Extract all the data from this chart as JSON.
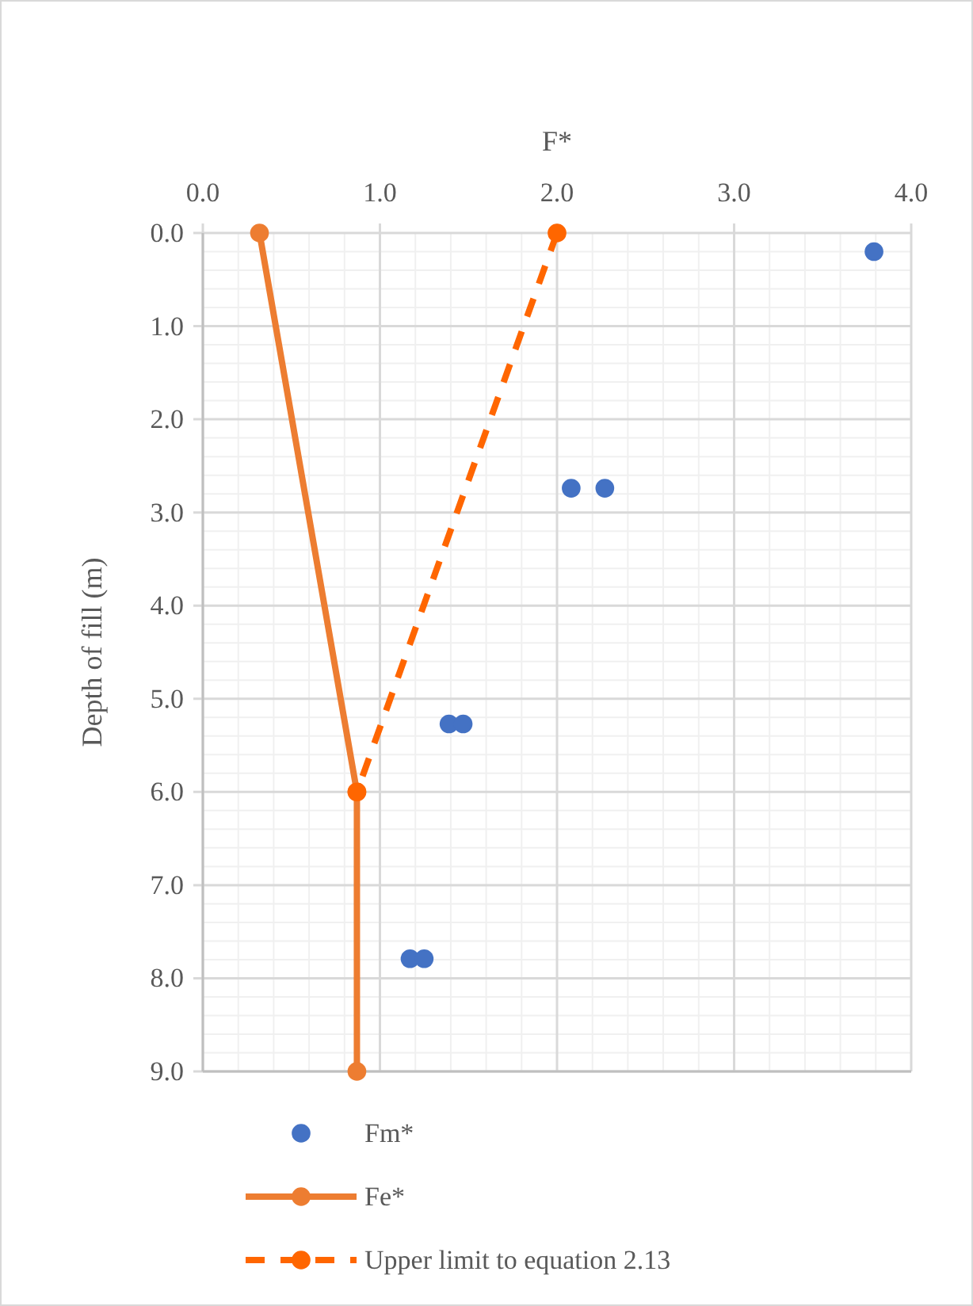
{
  "chart_data": {
    "type": "scatter",
    "xlabel": "F*",
    "ylabel": "Depth of fill (m)",
    "xlim": [
      0,
      4
    ],
    "xticks": [
      {
        "value": 0,
        "label": "0.0"
      },
      {
        "value": 1,
        "label": "1.0"
      },
      {
        "value": 2,
        "label": "2.0"
      },
      {
        "value": 3,
        "label": "3.0"
      },
      {
        "value": 4,
        "label": "4.0"
      }
    ],
    "ylim": [
      9,
      0
    ],
    "yticks": [
      {
        "value": 0,
        "label": "0.0"
      },
      {
        "value": 1,
        "label": "1.0"
      },
      {
        "value": 2,
        "label": "2.0"
      },
      {
        "value": 3,
        "label": "3.0"
      },
      {
        "value": 4,
        "label": "4.0"
      },
      {
        "value": 5,
        "label": "5.0"
      },
      {
        "value": 6,
        "label": "6.0"
      },
      {
        "value": 7,
        "label": "7.0"
      },
      {
        "value": 8,
        "label": "8.0"
      },
      {
        "value": 9,
        "label": "9.0"
      }
    ],
    "grid": true,
    "legend": "bottom",
    "series": [
      {
        "name": "Fm*",
        "color": "#4472c4",
        "marker": "circle",
        "x": [
          3.79,
          2.08,
          2.27,
          1.39,
          1.47,
          1.17,
          1.25
        ],
        "values": [
          0.2,
          2.74,
          2.74,
          5.27,
          5.27,
          7.79,
          7.79
        ]
      },
      {
        "name": "Fe*",
        "type": "line",
        "color": "#ed7d31",
        "marker": "circle",
        "line_style": "solid",
        "x": [
          0.32,
          0.87,
          0.87
        ],
        "values": [
          0,
          6,
          9
        ]
      },
      {
        "name": "Upper limit to equation 2.13",
        "type": "line",
        "color": "#ff6600",
        "marker": "circle",
        "line_style": "dashed",
        "x": [
          2.0,
          0.87
        ],
        "values": [
          0,
          6
        ]
      }
    ]
  }
}
